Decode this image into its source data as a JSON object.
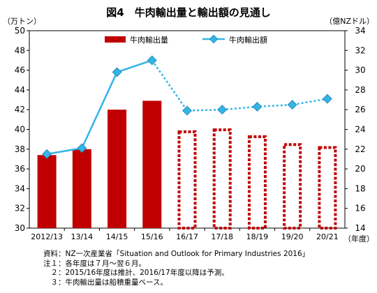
{
  "chart_data": {
    "type": "bar+line",
    "title": "図4　牛肉輸出量と輸出額の見通し",
    "left_axis_unit": "（万トン）",
    "right_axis_unit": "（億NZドル）",
    "x_unit": "（年度）",
    "categories": [
      "2012/13",
      "13/14",
      "14/15",
      "15/16",
      "16/17",
      "17/18",
      "18/19",
      "19/20",
      "20/21"
    ],
    "left_ylim": [
      30,
      50
    ],
    "left_ticks": [
      30,
      32,
      34,
      36,
      38,
      40,
      42,
      44,
      46,
      48,
      50
    ],
    "right_ylim": [
      14,
      34
    ],
    "right_ticks": [
      14,
      16,
      18,
      20,
      22,
      24,
      26,
      28,
      30,
      32,
      34
    ],
    "grid": false,
    "legend_position": "top",
    "series": [
      {
        "name": "牛肉輸出量",
        "kind": "bar",
        "axis": "left",
        "color": "#c00000",
        "values": [
          37.4,
          38.0,
          42.0,
          42.9,
          39.9,
          40.1,
          39.4,
          38.6,
          38.3
        ],
        "forecast_from_index": 4
      },
      {
        "name": "牛肉輸出額",
        "kind": "line",
        "axis": "right",
        "color": "#33b5e5",
        "values": [
          21.5,
          22.1,
          29.8,
          31.0,
          25.9,
          26.0,
          26.3,
          26.5,
          27.1
        ],
        "forecast_from_index": 4
      }
    ]
  },
  "notes": [
    "資料：NZ一次産業省「Situation and Outlook for Primary Industries 2016」",
    "注１：各年度は７月～翌６月。",
    "　２：2015/16年度は推計、2016/17年度以降は予測。",
    "　３：牛肉輸出量は船積重量ベース。"
  ]
}
